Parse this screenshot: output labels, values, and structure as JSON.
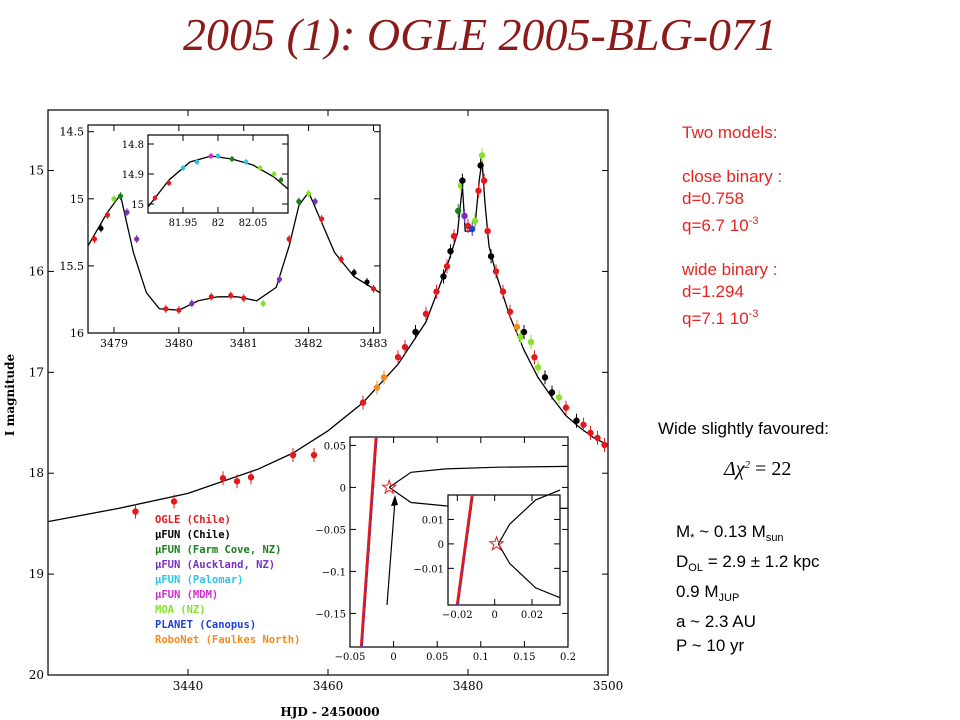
{
  "title": "2005 (1): OGLE 2005-BLG-071",
  "models": {
    "heading": "Two models:",
    "close": {
      "label": "close binary :",
      "d": "d=0.758",
      "q_text": "q=6.7 10",
      "q_exp": "-3"
    },
    "wide": {
      "label": "wide binary :",
      "d": "d=1.294",
      "q_text": "q=7.1 10",
      "q_exp": "-3"
    }
  },
  "favoured": "Wide slightly favoured:",
  "delta_chi2": {
    "symbol": "Δχ",
    "exp": "2",
    "rhs": "= 22"
  },
  "params": {
    "mass": {
      "a": "M",
      "star": "*",
      "b": " ~ 0.13 M",
      "sub": "sun"
    },
    "dist": {
      "a": "D",
      "sub": "OL",
      "b": " = 2.9 ± 1.2 kpc"
    },
    "planet": {
      "a": "0.9 M",
      "sub": "JUP"
    },
    "axis": "a ~ 2.3 AU",
    "period": "P ~ 10 yr"
  },
  "colors": {
    "title": "#8b1a1a",
    "text_red": "#e8231f",
    "ogle": "#e31a1c",
    "mufun_chile": "#000000",
    "mufun_farmcove": "#1a7f1a",
    "mufun_auckland": "#7b2fbf",
    "mufun_palomar": "#29c6e6",
    "mufun_mdm": "#d02fd0",
    "moa": "#88e02a",
    "planet": "#1f3fd6",
    "robonet": "#f58a1f"
  },
  "chart_data": [
    {
      "type": "scatter",
      "title": "",
      "xlabel": "HJD - 2450000",
      "ylabel": "I magnitude",
      "xlim": [
        3420,
        3500
      ],
      "ylim": [
        20,
        14.4
      ],
      "y_inverted": true,
      "xticks": [
        "3440",
        "3460",
        "3480",
        "3500"
      ],
      "yticks": [
        "15",
        "16",
        "17",
        "18",
        "19",
        "20"
      ],
      "legend_position": "lower-left",
      "legend": [
        {
          "name": "OGLE (Chile)",
          "color": "#e31a1c"
        },
        {
          "name": "μFUN (Chile)",
          "color": "#000000"
        },
        {
          "name": "μFUN (Farm Cove, NZ)",
          "color": "#1a7f1a"
        },
        {
          "name": "μFUN (Auckland, NZ)",
          "color": "#7b2fbf"
        },
        {
          "name": "μFUN (Palomar)",
          "color": "#29c6e6"
        },
        {
          "name": "μFUN (MDM)",
          "color": "#d02fd0"
        },
        {
          "name": "MOA (NZ)",
          "color": "#88e02a"
        },
        {
          "name": "PLANET (Canopus)",
          "color": "#1f3fd6"
        },
        {
          "name": "RoboNet (Faulkes North)",
          "color": "#f58a1f"
        }
      ],
      "model_curve": {
        "x": [
          3420,
          3430,
          3440,
          3450,
          3455,
          3460,
          3465,
          3470,
          3474,
          3477,
          3478.5,
          3479.2,
          3479.6,
          3480.5,
          3481.0,
          3481.6,
          3482.0,
          3482.4,
          3483,
          3484,
          3486,
          3488,
          3490,
          3492,
          3494,
          3496,
          3498,
          3500
        ],
        "y": [
          18.48,
          18.35,
          18.2,
          17.96,
          17.8,
          17.58,
          17.3,
          16.92,
          16.5,
          15.95,
          15.62,
          15.15,
          15.6,
          15.6,
          15.55,
          15.1,
          14.9,
          15.3,
          15.75,
          16.02,
          16.45,
          16.78,
          17.05,
          17.25,
          17.43,
          17.55,
          17.65,
          17.72
        ]
      },
      "points": [
        {
          "x": 3432.5,
          "y": 18.38,
          "s": "ogle"
        },
        {
          "x": 3438,
          "y": 18.28,
          "s": "ogle"
        },
        {
          "x": 3445,
          "y": 18.05,
          "s": "ogle"
        },
        {
          "x": 3447,
          "y": 18.08,
          "s": "ogle"
        },
        {
          "x": 3449,
          "y": 18.04,
          "s": "ogle"
        },
        {
          "x": 3455,
          "y": 17.82,
          "s": "ogle"
        },
        {
          "x": 3458,
          "y": 17.82,
          "s": "ogle"
        },
        {
          "x": 3465,
          "y": 17.3,
          "s": "ogle"
        },
        {
          "x": 3467,
          "y": 17.15,
          "s": "robonet"
        },
        {
          "x": 3468,
          "y": 17.05,
          "s": "robonet"
        },
        {
          "x": 3470,
          "y": 16.85,
          "s": "ogle"
        },
        {
          "x": 3471,
          "y": 16.75,
          "s": "ogle"
        },
        {
          "x": 3472.5,
          "y": 16.6,
          "s": "mufun_chile"
        },
        {
          "x": 3474,
          "y": 16.42,
          "s": "ogle"
        },
        {
          "x": 3475.5,
          "y": 16.2,
          "s": "ogle"
        },
        {
          "x": 3476.5,
          "y": 16.05,
          "s": "mufun_chile"
        },
        {
          "x": 3477,
          "y": 15.95,
          "s": "ogle"
        },
        {
          "x": 3477.5,
          "y": 15.8,
          "s": "mufun_chile"
        },
        {
          "x": 3478,
          "y": 15.65,
          "s": "ogle"
        },
        {
          "x": 3478.6,
          "y": 15.4,
          "s": "mufun_farmcove"
        },
        {
          "x": 3479.0,
          "y": 15.15,
          "s": "moa"
        },
        {
          "x": 3479.2,
          "y": 15.1,
          "s": "mufun_chile"
        },
        {
          "x": 3479.5,
          "y": 15.45,
          "s": "mufun_auckland"
        },
        {
          "x": 3480.0,
          "y": 15.55,
          "s": "ogle"
        },
        {
          "x": 3480.6,
          "y": 15.58,
          "s": "planet"
        },
        {
          "x": 3481.0,
          "y": 15.5,
          "s": "moa"
        },
        {
          "x": 3481.5,
          "y": 15.2,
          "s": "ogle"
        },
        {
          "x": 3481.8,
          "y": 14.95,
          "s": "mufun_chile"
        },
        {
          "x": 3482.0,
          "y": 14.85,
          "s": "moa"
        },
        {
          "x": 3482.3,
          "y": 15.1,
          "s": "ogle"
        },
        {
          "x": 3482.8,
          "y": 15.6,
          "s": "ogle"
        },
        {
          "x": 3483.3,
          "y": 15.85,
          "s": "mufun_chile"
        },
        {
          "x": 3484,
          "y": 16.0,
          "s": "ogle"
        },
        {
          "x": 3485,
          "y": 16.2,
          "s": "ogle"
        },
        {
          "x": 3486,
          "y": 16.4,
          "s": "ogle"
        },
        {
          "x": 3487,
          "y": 16.55,
          "s": "robonet"
        },
        {
          "x": 3487.5,
          "y": 16.65,
          "s": "moa"
        },
        {
          "x": 3488,
          "y": 16.6,
          "s": "mufun_chile"
        },
        {
          "x": 3489,
          "y": 16.7,
          "s": "moa"
        },
        {
          "x": 3489.5,
          "y": 16.85,
          "s": "ogle"
        },
        {
          "x": 3490,
          "y": 16.95,
          "s": "moa"
        },
        {
          "x": 3491,
          "y": 17.05,
          "s": "mufun_chile"
        },
        {
          "x": 3492,
          "y": 17.2,
          "s": "mufun_chile"
        },
        {
          "x": 3493,
          "y": 17.25,
          "s": "moa"
        },
        {
          "x": 3494,
          "y": 17.35,
          "s": "ogle"
        },
        {
          "x": 3495.5,
          "y": 17.48,
          "s": "mufun_chile"
        },
        {
          "x": 3496.5,
          "y": 17.52,
          "s": "ogle"
        },
        {
          "x": 3497.5,
          "y": 17.6,
          "s": "ogle"
        },
        {
          "x": 3498.5,
          "y": 17.65,
          "s": "ogle"
        },
        {
          "x": 3499.5,
          "y": 17.72,
          "s": "ogle"
        }
      ]
    },
    {
      "type": "scatter",
      "title": "",
      "xlabel": "",
      "ylabel": "",
      "xlim": [
        3478.6,
        3483.1
      ],
      "ylim": [
        16,
        14.45
      ],
      "y_inverted": true,
      "xticks": [
        "3479",
        "3480",
        "3481",
        "3482",
        "3483"
      ],
      "yticks": [
        "14.5",
        "15",
        "15.5",
        "16"
      ],
      "model_curve": {
        "x": [
          3478.6,
          3478.9,
          3479.1,
          3479.3,
          3479.5,
          3479.7,
          3480.0,
          3480.3,
          3480.6,
          3480.9,
          3481.2,
          3481.5,
          3481.7,
          3481.85,
          3482.0,
          3482.15,
          3482.4,
          3482.7,
          3483.1
        ],
        "y": [
          15.35,
          15.1,
          14.97,
          15.4,
          15.7,
          15.82,
          15.83,
          15.76,
          15.73,
          15.73,
          15.76,
          15.66,
          15.35,
          15.05,
          14.95,
          15.12,
          15.4,
          15.58,
          15.7
        ]
      },
      "points": [
        {
          "x": 3478.7,
          "y": 15.3,
          "s": "ogle"
        },
        {
          "x": 3478.8,
          "y": 15.22,
          "s": "mufun_chile"
        },
        {
          "x": 3478.9,
          "y": 15.12,
          "s": "ogle"
        },
        {
          "x": 3479.0,
          "y": 15.0,
          "s": "moa"
        },
        {
          "x": 3479.1,
          "y": 14.98,
          "s": "mufun_farmcove"
        },
        {
          "x": 3479.2,
          "y": 15.1,
          "s": "mufun_auckland"
        },
        {
          "x": 3479.35,
          "y": 15.3,
          "s": "mufun_auckland"
        },
        {
          "x": 3479.8,
          "y": 15.82,
          "s": "ogle"
        },
        {
          "x": 3480.0,
          "y": 15.83,
          "s": "ogle"
        },
        {
          "x": 3480.2,
          "y": 15.78,
          "s": "mufun_auckland"
        },
        {
          "x": 3480.5,
          "y": 15.73,
          "s": "ogle"
        },
        {
          "x": 3480.8,
          "y": 15.72,
          "s": "ogle"
        },
        {
          "x": 3481.0,
          "y": 15.74,
          "s": "ogle"
        },
        {
          "x": 3481.3,
          "y": 15.78,
          "s": "moa"
        },
        {
          "x": 3481.55,
          "y": 15.6,
          "s": "mufun_auckland"
        },
        {
          "x": 3481.7,
          "y": 15.3,
          "s": "ogle"
        },
        {
          "x": 3481.85,
          "y": 15.02,
          "s": "mufun_farmcove"
        },
        {
          "x": 3482.0,
          "y": 14.96,
          "s": "moa"
        },
        {
          "x": 3482.1,
          "y": 15.02,
          "s": "mufun_auckland"
        },
        {
          "x": 3482.2,
          "y": 15.15,
          "s": "ogle"
        },
        {
          "x": 3482.5,
          "y": 15.45,
          "s": "ogle"
        },
        {
          "x": 3482.7,
          "y": 15.55,
          "s": "mufun_chile"
        },
        {
          "x": 3482.9,
          "y": 15.62,
          "s": "mufun_chile"
        },
        {
          "x": 3483.0,
          "y": 15.67,
          "s": "ogle"
        }
      ]
    },
    {
      "type": "scatter",
      "title": "",
      "xlabel": "",
      "ylabel": "",
      "xlim": [
        81.9,
        82.1
      ],
      "ylim": [
        15.03,
        14.77
      ],
      "y_inverted": true,
      "xticks": [
        "81.95",
        "82",
        "82.05"
      ],
      "yticks": [
        "14.8",
        "14.9",
        "15"
      ],
      "model_curve": {
        "x": [
          81.9,
          81.93,
          81.96,
          81.99,
          82.02,
          82.05,
          82.08,
          82.1
        ],
        "y": [
          15.01,
          14.92,
          14.86,
          14.84,
          14.85,
          14.87,
          14.91,
          14.95
        ]
      },
      "points": [
        {
          "x": 81.91,
          "y": 14.98,
          "s": "ogle"
        },
        {
          "x": 81.93,
          "y": 14.93,
          "s": "ogle"
        },
        {
          "x": 81.95,
          "y": 14.88,
          "s": "mufun_palomar"
        },
        {
          "x": 81.97,
          "y": 14.86,
          "s": "mufun_palomar"
        },
        {
          "x": 81.99,
          "y": 14.84,
          "s": "mufun_mdm"
        },
        {
          "x": 82.0,
          "y": 14.84,
          "s": "mufun_palomar"
        },
        {
          "x": 82.02,
          "y": 14.85,
          "s": "mufun_farmcove"
        },
        {
          "x": 82.04,
          "y": 14.86,
          "s": "mufun_palomar"
        },
        {
          "x": 82.06,
          "y": 14.88,
          "s": "moa"
        },
        {
          "x": 82.08,
          "y": 14.9,
          "s": "moa"
        },
        {
          "x": 82.09,
          "y": 14.92,
          "s": "mufun_farmcove"
        }
      ]
    },
    {
      "type": "scatter",
      "title": "",
      "xlabel": "",
      "ylabel": "",
      "xlim": [
        -0.05,
        0.2
      ],
      "ylim": [
        -0.19,
        0.06
      ],
      "xticks": [
        "−0.05",
        "0",
        "0.05",
        "0.1",
        "0.15",
        "0.2"
      ],
      "yticks": [
        "0.05",
        "0",
        "−0.05",
        "−0.1",
        "−0.15"
      ],
      "caustic_upper": {
        "x": [
          -0.005,
          0.02,
          0.06,
          0.12,
          0.2
        ],
        "y": [
          0.0,
          0.018,
          0.022,
          0.024,
          0.025
        ]
      },
      "caustic_lower": {
        "x": [
          -0.005,
          0.02,
          0.06,
          0.12,
          0.2
        ],
        "y": [
          0.0,
          -0.018,
          -0.022,
          -0.024,
          -0.025
        ]
      },
      "source_track": {
        "x": [
          -0.037,
          -0.02
        ],
        "y": [
          -0.19,
          0.06
        ]
      },
      "star_marker": {
        "x": -0.005,
        "y": 0.0
      }
    },
    {
      "type": "scatter",
      "title": "",
      "xlabel": "",
      "ylabel": "",
      "xlim": [
        -0.025,
        0.035
      ],
      "ylim": [
        -0.025,
        0.02
      ],
      "xticks": [
        "−0.02",
        "0",
        "0.02"
      ],
      "yticks": [
        "0.01",
        "0",
        "−0.01"
      ],
      "caustic_upper": {
        "x": [
          0.002,
          0.008,
          0.015,
          0.022,
          0.035
        ],
        "y": [
          0.0,
          0.008,
          0.013,
          0.018,
          0.022
        ]
      },
      "caustic_lower": {
        "x": [
          0.002,
          0.008,
          0.015,
          0.022,
          0.035
        ],
        "y": [
          0.0,
          -0.008,
          -0.013,
          -0.018,
          -0.022
        ]
      },
      "source_track": {
        "x": [
          -0.02,
          -0.012
        ],
        "y": [
          -0.025,
          0.02
        ]
      },
      "star_marker": {
        "x": 0.001,
        "y": 0.0
      }
    }
  ]
}
